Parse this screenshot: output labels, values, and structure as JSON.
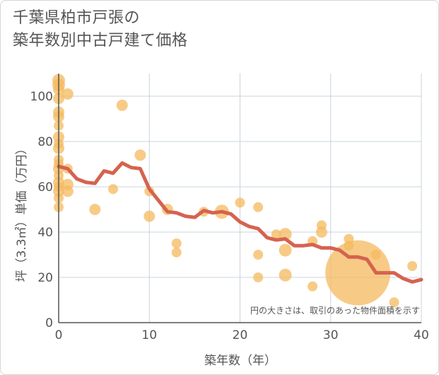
{
  "title_lines": [
    "千葉県柏市戸張の",
    "築年数別中古戸建て価格"
  ],
  "colors": {
    "bubble": "#f4b95e",
    "line": "#d5634f",
    "grid": "#c9d4dc",
    "axis": "#555555"
  },
  "chart_data": {
    "type": "scatter",
    "title": "千葉県柏市戸張の築年数別中古戸建て価格",
    "xlabel": "築年数（年）",
    "ylabel": "坪（3.3㎡）単価（万円）",
    "xlim": [
      0,
      40
    ],
    "ylim": [
      0,
      110
    ],
    "xticks": [
      0,
      10,
      20,
      30,
      40
    ],
    "yticks": [
      0,
      20,
      40,
      60,
      80,
      100
    ],
    "note": "円の大きさは、取引のあった物件面積を示す",
    "scatter": [
      {
        "x": 0,
        "y": 107,
        "r": 9
      },
      {
        "x": 0,
        "y": 105,
        "r": 9
      },
      {
        "x": 0,
        "y": 103,
        "r": 8
      },
      {
        "x": 0,
        "y": 99,
        "r": 8
      },
      {
        "x": 0,
        "y": 93,
        "r": 8
      },
      {
        "x": 0,
        "y": 91,
        "r": 8
      },
      {
        "x": 0,
        "y": 87,
        "r": 7
      },
      {
        "x": 0,
        "y": 82,
        "r": 8
      },
      {
        "x": 0,
        "y": 79,
        "r": 7
      },
      {
        "x": 0,
        "y": 77,
        "r": 8
      },
      {
        "x": 0,
        "y": 72,
        "r": 7
      },
      {
        "x": 0,
        "y": 70,
        "r": 7
      },
      {
        "x": 0,
        "y": 68,
        "r": 8
      },
      {
        "x": 0,
        "y": 65,
        "r": 7
      },
      {
        "x": 0,
        "y": 62,
        "r": 8
      },
      {
        "x": 0,
        "y": 60,
        "r": 7
      },
      {
        "x": 0,
        "y": 58,
        "r": 8
      },
      {
        "x": 0,
        "y": 55,
        "r": 7
      },
      {
        "x": 0,
        "y": 51,
        "r": 7
      },
      {
        "x": 1,
        "y": 101,
        "r": 8
      },
      {
        "x": 1,
        "y": 68,
        "r": 7
      },
      {
        "x": 1,
        "y": 61,
        "r": 8
      },
      {
        "x": 1,
        "y": 58,
        "r": 8
      },
      {
        "x": 4,
        "y": 50,
        "r": 8
      },
      {
        "x": 6,
        "y": 59,
        "r": 7
      },
      {
        "x": 7,
        "y": 96,
        "r": 8
      },
      {
        "x": 9,
        "y": 74,
        "r": 8
      },
      {
        "x": 10,
        "y": 58,
        "r": 7
      },
      {
        "x": 10,
        "y": 47,
        "r": 8
      },
      {
        "x": 12,
        "y": 50,
        "r": 8
      },
      {
        "x": 13,
        "y": 35,
        "r": 7
      },
      {
        "x": 13,
        "y": 31,
        "r": 7
      },
      {
        "x": 16,
        "y": 49,
        "r": 7
      },
      {
        "x": 18,
        "y": 49,
        "r": 10
      },
      {
        "x": 20,
        "y": 53,
        "r": 7
      },
      {
        "x": 22,
        "y": 51,
        "r": 7
      },
      {
        "x": 22,
        "y": 30,
        "r": 7
      },
      {
        "x": 22,
        "y": 20,
        "r": 7
      },
      {
        "x": 24,
        "y": 39,
        "r": 7
      },
      {
        "x": 25,
        "y": 39,
        "r": 9
      },
      {
        "x": 25,
        "y": 32,
        "r": 9
      },
      {
        "x": 25,
        "y": 21,
        "r": 9
      },
      {
        "x": 28,
        "y": 36,
        "r": 7
      },
      {
        "x": 28,
        "y": 16,
        "r": 7
      },
      {
        "x": 29,
        "y": 43,
        "r": 7
      },
      {
        "x": 29,
        "y": 40,
        "r": 8
      },
      {
        "x": 32,
        "y": 37,
        "r": 7
      },
      {
        "x": 32,
        "y": 34,
        "r": 7
      },
      {
        "x": 33,
        "y": 22,
        "r": 46
      },
      {
        "x": 35,
        "y": 30,
        "r": 7
      },
      {
        "x": 37,
        "y": 9,
        "r": 7
      },
      {
        "x": 39,
        "y": 25,
        "r": 7
      }
    ],
    "trend": {
      "x": [
        0,
        1,
        2,
        3,
        4,
        5,
        6,
        7,
        8,
        9,
        10,
        11,
        12,
        13,
        14,
        15,
        16,
        17,
        18,
        19,
        20,
        21,
        22,
        23,
        24,
        25,
        26,
        27,
        28,
        29,
        30,
        31,
        32,
        33,
        34,
        35,
        36,
        37,
        38,
        39,
        40
      ],
      "y": [
        69,
        68,
        63.5,
        62,
        61.5,
        67,
        66,
        70.5,
        68.5,
        68,
        59,
        54,
        49,
        48.5,
        47,
        46.5,
        49.5,
        48.5,
        49,
        48,
        44.5,
        42.5,
        41.5,
        37.5,
        36.5,
        37,
        34,
        34,
        34.5,
        33,
        33,
        32,
        29,
        29,
        28,
        22,
        22,
        22,
        19.5,
        18,
        19
      ]
    }
  }
}
